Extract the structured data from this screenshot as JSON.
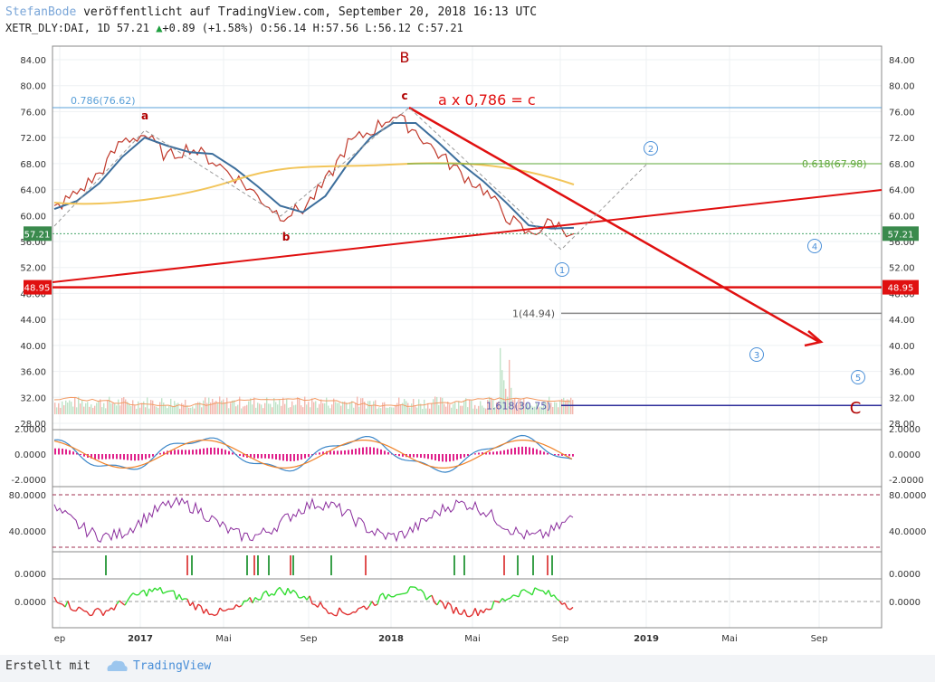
{
  "header": {
    "author": "StefanBode",
    "published": " veröffentlicht auf TradingView.com, September 20, 2018 16:13 UTC",
    "symbol": "XETR_DLY:DAI, 1D",
    "last": "57.21",
    "change": "+0.89 (+1.58%)",
    "ohlc": "O:56.14 H:57.56 L:56.12 C:57.21"
  },
  "footer": {
    "made_with": "Erstellt mit",
    "brand": "TradingView"
  },
  "colors": {
    "red": "#e01010",
    "blue_line": "#3c6e9c",
    "orange_ma": "#f2c55a",
    "fib_blue": "#5aa0d8",
    "fib_green": "#5fa83a",
    "navy": "#2d2d9a",
    "volume": "#f3b9b0",
    "macd": "#3b86c8",
    "signal": "#f0832a",
    "rsi": "#8a2c9c"
  },
  "chart_data": {
    "type": "line",
    "title": "",
    "x_ticks": [
      "ep",
      "2017",
      "Mai",
      "Sep",
      "2018",
      "Mai",
      "Sep",
      "2019",
      "Mai",
      "Sep"
    ],
    "y_ticks": [
      "84.00",
      "80.00",
      "76.00",
      "72.00",
      "68.00",
      "64.00",
      "60.00",
      "56.00",
      "52.00",
      "48.00",
      "44.00",
      "40.00",
      "36.00",
      "32.00",
      "28.00"
    ],
    "ylim": [
      27,
      86
    ],
    "price_close": [
      61.0,
      63.5,
      66.5,
      71.5,
      72.5,
      69.0,
      70.5,
      68.5,
      66.0,
      63.0,
      60.0,
      61.0,
      65.0,
      71.0,
      73.0,
      75.5,
      73.0,
      69.5,
      66.5,
      64.0,
      60.0,
      57.0,
      59.0,
      57.21
    ],
    "price_high_marker": 57.21,
    "horizontal_levels": [
      {
        "label": "0.786(76.62)",
        "value": 76.62
      },
      {
        "label": "0.618(67.98)",
        "value": 67.98
      },
      {
        "label": "1(44.94)",
        "value": 44.94
      },
      {
        "label": "1.618(30.75)",
        "value": 30.75
      },
      {
        "label": "48.95",
        "value": 48.95
      }
    ],
    "last_price_label": "57.21",
    "wave_labels": [
      "B",
      "a",
      "b",
      "c",
      "C"
    ],
    "circle_labels": [
      "1",
      "2",
      "4",
      "3",
      "5"
    ],
    "annotation": "a x 0,786 = c",
    "macd_ticks": [
      "2.0000",
      "0.0000",
      "-2.0000"
    ],
    "rsi_ticks": [
      "80.0000",
      "40.0000"
    ],
    "ind3_ticks": [
      "0.0000"
    ],
    "ind4_ticks": [
      "0.0000"
    ]
  }
}
